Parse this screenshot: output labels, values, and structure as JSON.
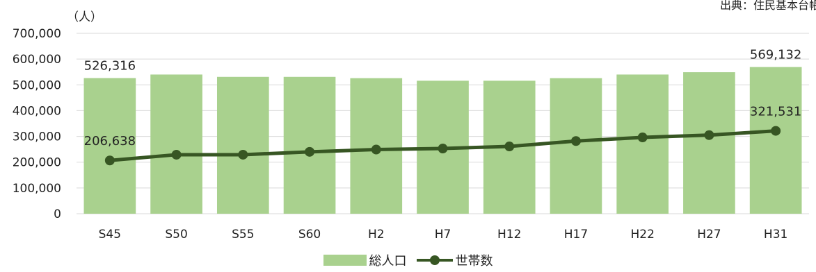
{
  "unit_label": "（人）",
  "source_text": "出典：住民基本台帳",
  "colors": {
    "bar": "#a9d18e",
    "line": "#375623",
    "grid": "#d9d9d9"
  },
  "chart_data": {
    "type": "bar",
    "categories": [
      "S45",
      "S50",
      "S55",
      "S60",
      "H2",
      "H7",
      "H12",
      "H17",
      "H22",
      "H27",
      "H31"
    ],
    "ylim": [
      0,
      700000
    ],
    "yticks": [
      "0",
      "100,000",
      "200,000",
      "300,000",
      "400,000",
      "500,000",
      "600,000",
      "700,000"
    ],
    "grid": true,
    "legend_position": "bottom",
    "series": [
      {
        "name": "総人口",
        "type": "bar",
        "values": [
          526316,
          540000,
          531000,
          531000,
          526000,
          516000,
          516000,
          526000,
          540000,
          549000,
          569132
        ]
      },
      {
        "name": "世帯数",
        "type": "line",
        "values": [
          206638,
          229000,
          229000,
          240000,
          249000,
          253000,
          261000,
          282000,
          296000,
          305000,
          321531
        ]
      }
    ],
    "data_labels": [
      {
        "series": 0,
        "index": 0,
        "text": "526,316"
      },
      {
        "series": 0,
        "index": 10,
        "text": "569,132"
      },
      {
        "series": 1,
        "index": 0,
        "text": "206,638"
      },
      {
        "series": 1,
        "index": 10,
        "text": "321,531"
      }
    ]
  }
}
